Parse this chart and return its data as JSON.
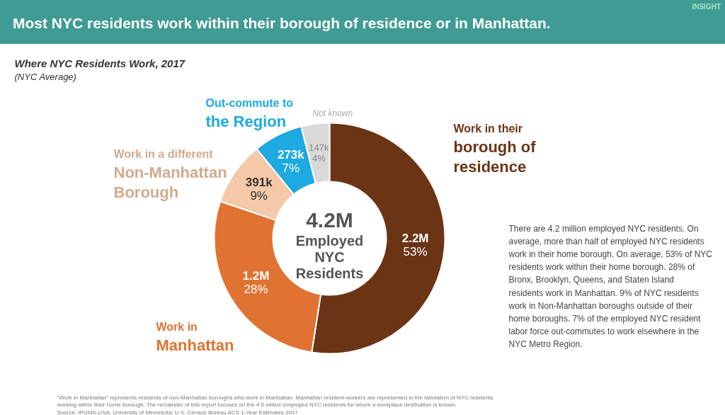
{
  "chart_data": {
    "type": "donut",
    "title": "Most NYC residents work within their borough of residence or in Manhattan.",
    "subtitle": "Where NYC Residents Work, 2017 (NYC Average)",
    "categories": [
      "Work in their borough of residence",
      "Work in Manhattan",
      "Work in a different Non-Manhattan Borough",
      "Out-commute to the Region",
      "Not known"
    ],
    "values": [
      53,
      28,
      9,
      7,
      4
    ],
    "colors": [
      "#6b3414",
      "#e07232",
      "#f5c8a8",
      "#1ea9e1",
      "#d9d9d9"
    ],
    "value_labels": [
      "2.2M\n53%",
      "1.2M\n28%",
      "391k\n9%",
      "273k\n7%",
      "147k\n4%"
    ],
    "annotations": [
      "INSIGHT",
      "4.2M\nEmployed\nNYC\nResidents",
      "There are 4.2 million employed NYC residents. On average, more than half of employed NYC residents work in their home borough. On average, 53% of NYC residents work within their home borough. 28% of Bronx, Brooklyn, Queens, and Staten Island residents work in Manhattan. 9% of NYC residents work in Non-Manhattan boroughs outside of their home boroughs. 7% of the employed NYC resident labor force out-commutes to work elsewhere in the NYC Metro Region.",
      "\"Work in Manhattan\" represents residents of non-Manhattan boroughs who work in Manhattan. Manhattan resident-workers are represented in the tabulation of NYC residents working within their home borough. The remainder of this report focuses on the 4.0 million employed NYC residents for whom a workplace destination is known.",
      "Source: IPUMS-USA, University of Minnesota; U.S. Census Bureau ACS 1-Year Estimates 2017"
    ]
  }
}
